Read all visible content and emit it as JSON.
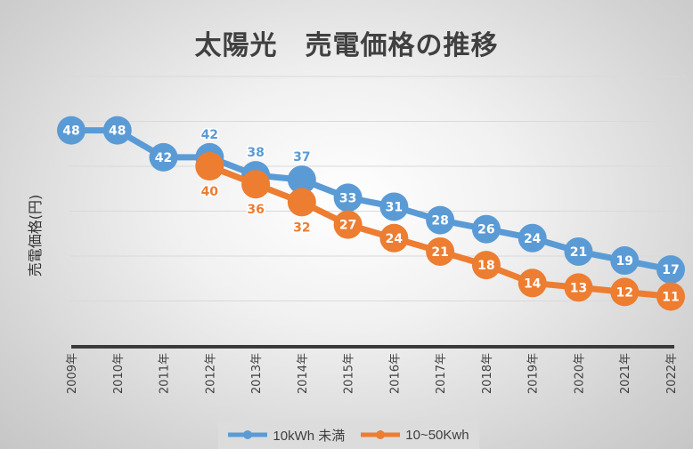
{
  "chart_data": {
    "type": "line",
    "title": "太陽光　売電価格の推移",
    "xlabel": "",
    "ylabel": "売電価格(円)",
    "categories": [
      "2009年",
      "2010年",
      "2011年",
      "2012年",
      "2013年",
      "2014年",
      "2015年",
      "2016年",
      "2017年",
      "2018年",
      "2019年",
      "2020年",
      "2021年",
      "2022年"
    ],
    "ylim": [
      0,
      60
    ],
    "grid": true,
    "legend_position": "bottom",
    "series": [
      {
        "name": "10kWh 未満",
        "color": "#5b9bd5",
        "values": [
          48,
          48,
          42,
          42,
          38,
          37,
          33,
          31,
          28,
          26,
          24,
          21,
          19,
          17
        ]
      },
      {
        "name": "10~50Kwh",
        "color": "#ed7d31",
        "values": [
          null,
          null,
          null,
          40,
          36,
          32,
          27,
          24,
          21,
          18,
          14,
          13,
          12,
          11
        ]
      }
    ]
  }
}
